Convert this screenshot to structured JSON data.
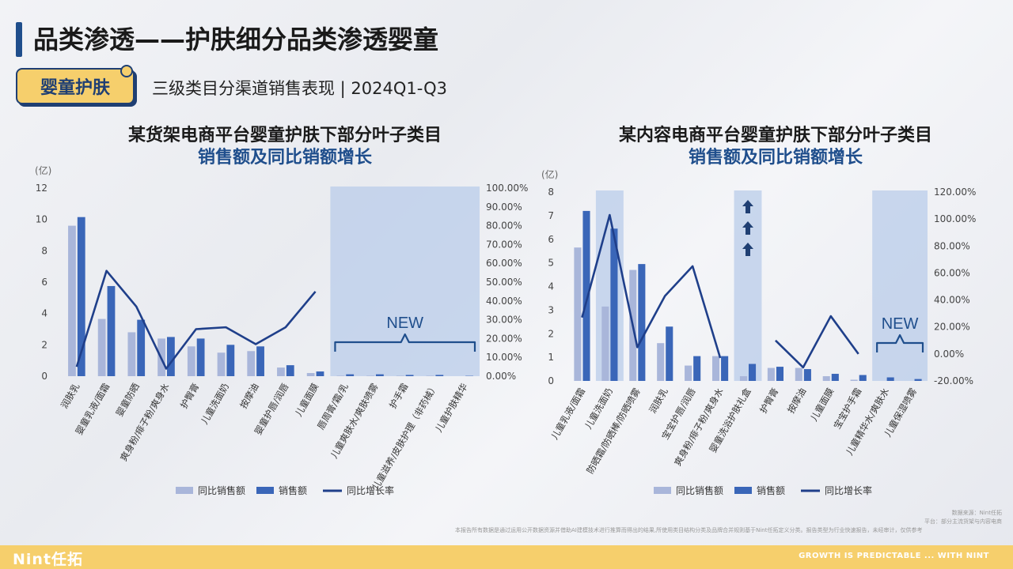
{
  "header": {
    "title": "品类渗透——护肤细分品类渗透婴童",
    "tag": "婴童护肤",
    "subtitle": "三级类目分渠道销售表现 | 2024Q1-Q3"
  },
  "left_title": {
    "line1": "某货架电商平台婴童护肤下部分叶子类目",
    "line2": "销售额及同比销额增长"
  },
  "right_title": {
    "line1": "某内容电商平台婴童护肤下部分叶子类目",
    "line2": "销售额及同比销额增长"
  },
  "footer": {
    "source_line1": "数据来源：Nint任拓",
    "source_line2": "平台：部分主流货架与内容电商",
    "disclaimer": "本报告所有数据是通过运用公开数据资源并借助AI建模技术进行推算而得出的结果,所使用类目结构分类及品牌合并规则基于Nint任拓定义分类。报告类型为行业快速报告，未经审计，仅供参考",
    "logo": "Nint任拓",
    "slogan": "GROWTH IS PREDICTABLE ... WITH NINT"
  },
  "colors": {
    "prev": "#a9b6da",
    "curr": "#3a66b8",
    "line": "#1f3f8a",
    "shade": "rgba(186,204,234,0.75)",
    "accent": "#1f4e8c"
  },
  "chart_data": [
    {
      "type": "bar",
      "categories": [
        "润肤乳",
        "婴童乳液/面霜",
        "婴童防晒",
        "爽身粉/痱子粉/爽身水",
        "护臀膏",
        "儿童洗面奶",
        "按摩油",
        "婴童护唇/润唇",
        "儿童面膜",
        "唇周膏/霜/乳",
        "儿童爽肤水/爽肤喷雾",
        "护手霜",
        "儿童滋养/皮肤护理（非药械）",
        "儿童护肤精华"
      ],
      "series": [
        {
          "name": "同比销售额",
          "values": [
            9.6,
            3.65,
            2.8,
            2.4,
            1.9,
            1.5,
            1.6,
            0.55,
            0.2,
            0.03,
            0.03,
            0.03,
            0.03,
            0
          ]
        },
        {
          "name": "销售额",
          "values": [
            10.15,
            5.75,
            3.6,
            2.5,
            2.4,
            2.0,
            1.9,
            0.7,
            0.3,
            0.12,
            0.12,
            0.08,
            0.08,
            0.02
          ]
        },
        {
          "name": "同比增长率",
          "axis": "right",
          "values": [
            0.05,
            0.56,
            0.37,
            0.04,
            0.25,
            0.26,
            0.17,
            0.26,
            0.45,
            null,
            null,
            null,
            null,
            null
          ]
        }
      ],
      "ylabel": "(亿)",
      "ylim": [
        0,
        12
      ],
      "y2lim": [
        0,
        1
      ],
      "highlight": {
        "label": "NEW"
      },
      "legend": "bottom"
    },
    {
      "type": "bar",
      "categories": [
        "儿童乳液/面霜",
        "儿童洗面奶",
        "防晒霜/防晒棒/防晒喷雾",
        "润肤乳",
        "宝宝护唇/润唇",
        "爽身粉/痱子粉/爽身水",
        "婴童洗浴护肤礼盒",
        "护臀膏",
        "按摩油",
        "儿童面膜",
        "宝宝护手霜",
        "儿童精华水/爽肤水",
        "儿童保湿喷雾"
      ],
      "series": [
        {
          "name": "同比销售额",
          "values": [
            5.65,
            3.15,
            4.7,
            1.6,
            0.65,
            1.05,
            0.2,
            0.55,
            0.55,
            0.2,
            0.05,
            0,
            0
          ]
        },
        {
          "name": "销售额",
          "values": [
            7.2,
            6.45,
            4.95,
            2.3,
            1.05,
            1.05,
            0.72,
            0.6,
            0.5,
            0.3,
            0.25,
            0.15,
            0.08
          ]
        },
        {
          "name": "同比增长率",
          "axis": "right",
          "values": [
            0.27,
            1.03,
            0.05,
            0.43,
            0.65,
            -0.03,
            null,
            0.1,
            -0.1,
            0.28,
            0,
            null,
            null
          ]
        }
      ],
      "ylabel": "(亿)",
      "ylim": [
        0,
        8
      ],
      "y2lim": [
        -0.2,
        1.2
      ],
      "highlight": {
        "label": "NEW"
      },
      "legend": "bottom"
    }
  ]
}
